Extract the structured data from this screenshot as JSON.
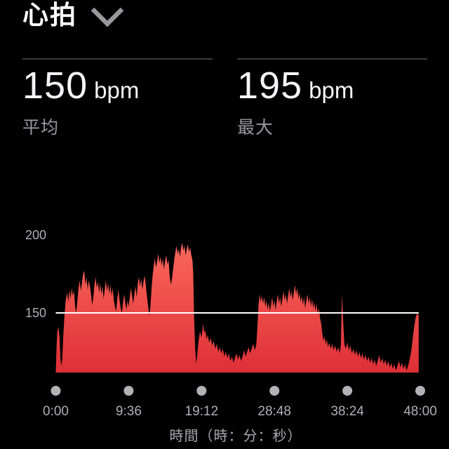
{
  "header": {
    "title": "心拍"
  },
  "stats": [
    {
      "value": "150",
      "unit": "bpm",
      "label": "平均"
    },
    {
      "value": "195",
      "unit": "bpm",
      "label": "最大"
    }
  ],
  "chart_data": {
    "type": "area",
    "series_name": "心拍数",
    "unit": "bpm",
    "xlabel": "時間（時：分：秒）",
    "x_range_minutes": [
      0,
      48
    ],
    "y_range_bpm": [
      111.5,
      211
    ],
    "reference_line_bpm": 150,
    "grid": "off",
    "y_ticks": [
      {
        "value": 200,
        "label": "200"
      },
      {
        "value": 150,
        "label": "150"
      }
    ],
    "x_ticks": [
      {
        "minutes": 0,
        "label": "0:00"
      },
      {
        "minutes": 9.6,
        "label": "9:36"
      },
      {
        "minutes": 19.2,
        "label": "19:12"
      },
      {
        "minutes": 28.8,
        "label": "28:48"
      },
      {
        "minutes": 38.4,
        "label": "38:24"
      },
      {
        "minutes": 48,
        "label": "48:00"
      }
    ],
    "colors": {
      "area_top": "#fc6a5d",
      "area_bottom": "#de2f37",
      "reference_line": "#ffffff",
      "tick_dot": "#b2b2b7",
      "tick_label": "#b0b0b5",
      "caption_gray": "#98989d",
      "divider": "#3a3a3c",
      "background": "#000000"
    },
    "series": [
      {
        "name": "心拍数",
        "unit": "bpm",
        "points": [
          [
            0,
            112
          ],
          [
            0.1,
            128
          ],
          [
            0.2,
            138
          ],
          [
            0.35,
            141
          ],
          [
            0.5,
            134
          ],
          [
            0.6,
            122
          ],
          [
            0.7,
            116
          ],
          [
            0.85,
            120
          ],
          [
            1,
            136
          ],
          [
            1.15,
            148
          ],
          [
            1.3,
            158
          ],
          [
            1.5,
            163
          ],
          [
            1.65,
            157
          ],
          [
            1.8,
            165
          ],
          [
            1.95,
            159
          ],
          [
            2.1,
            166
          ],
          [
            2.25,
            161
          ],
          [
            2.4,
            164
          ],
          [
            2.55,
            154
          ],
          [
            2.7,
            150
          ],
          [
            2.85,
            158
          ],
          [
            3,
            166
          ],
          [
            3.15,
            171
          ],
          [
            3.3,
            164
          ],
          [
            3.45,
            169
          ],
          [
            3.6,
            175
          ],
          [
            3.75,
            177
          ],
          [
            3.9,
            168
          ],
          [
            4.05,
            173
          ],
          [
            4.2,
            165
          ],
          [
            4.35,
            171
          ],
          [
            4.5,
            167
          ],
          [
            4.65,
            162
          ],
          [
            4.8,
            155
          ],
          [
            4.95,
            160
          ],
          [
            5.1,
            168
          ],
          [
            5.25,
            173
          ],
          [
            5.4,
            166
          ],
          [
            5.55,
            170
          ],
          [
            5.7,
            163
          ],
          [
            5.85,
            169
          ],
          [
            6,
            162
          ],
          [
            6.15,
            167
          ],
          [
            6.3,
            159
          ],
          [
            6.45,
            165
          ],
          [
            6.6,
            171
          ],
          [
            6.75,
            164
          ],
          [
            6.9,
            169
          ],
          [
            7.05,
            162
          ],
          [
            7.2,
            168
          ],
          [
            7.35,
            161
          ],
          [
            7.5,
            166
          ],
          [
            7.65,
            158
          ],
          [
            7.8,
            154
          ],
          [
            7.95,
            151
          ],
          [
            8.1,
            159
          ],
          [
            8.25,
            165
          ],
          [
            8.4,
            158
          ],
          [
            8.55,
            153
          ],
          [
            8.7,
            150
          ],
          [
            8.85,
            156
          ],
          [
            9,
            162
          ],
          [
            9.15,
            157
          ],
          [
            9.3,
            152
          ],
          [
            9.45,
            158
          ],
          [
            9.6,
            154
          ],
          [
            9.75,
            160
          ],
          [
            9.9,
            166
          ],
          [
            10.05,
            161
          ],
          [
            10.2,
            156
          ],
          [
            10.35,
            162
          ],
          [
            10.5,
            167
          ],
          [
            10.65,
            160
          ],
          [
            10.8,
            169
          ],
          [
            10.95,
            173
          ],
          [
            11.1,
            167
          ],
          [
            11.25,
            172
          ],
          [
            11.4,
            165
          ],
          [
            11.55,
            170
          ],
          [
            11.7,
            174
          ],
          [
            11.85,
            168
          ],
          [
            12,
            161
          ],
          [
            12.15,
            155
          ],
          [
            12.3,
            148
          ],
          [
            12.45,
            153
          ],
          [
            12.6,
            165
          ],
          [
            12.75,
            174
          ],
          [
            12.9,
            180
          ],
          [
            13.05,
            185
          ],
          [
            13.2,
            179
          ],
          [
            13.35,
            183
          ],
          [
            13.5,
            188
          ],
          [
            13.65,
            182
          ],
          [
            13.8,
            186
          ],
          [
            13.95,
            180
          ],
          [
            14.1,
            185
          ],
          [
            14.25,
            178
          ],
          [
            14.4,
            183
          ],
          [
            14.55,
            187
          ],
          [
            14.7,
            181
          ],
          [
            14.85,
            184
          ],
          [
            15,
            174
          ],
          [
            15.15,
            168
          ],
          [
            15.3,
            172
          ],
          [
            15.45,
            178
          ],
          [
            15.6,
            184
          ],
          [
            15.75,
            189
          ],
          [
            15.9,
            193
          ],
          [
            16.05,
            188
          ],
          [
            16.2,
            191
          ],
          [
            16.35,
            186
          ],
          [
            16.5,
            192
          ],
          [
            16.65,
            195
          ],
          [
            16.8,
            190
          ],
          [
            16.95,
            193
          ],
          [
            17.1,
            187
          ],
          [
            17.25,
            191
          ],
          [
            17.4,
            194
          ],
          [
            17.55,
            189
          ],
          [
            17.7,
            192
          ],
          [
            17.85,
            187
          ],
          [
            18,
            184
          ],
          [
            18.1,
            176
          ],
          [
            18.2,
            150
          ],
          [
            18.35,
            128
          ],
          [
            18.5,
            117
          ],
          [
            18.65,
            124
          ],
          [
            18.8,
            132
          ],
          [
            19,
            138
          ],
          [
            19.2,
            134
          ],
          [
            19.4,
            143
          ],
          [
            19.55,
            137
          ],
          [
            19.7,
            139
          ],
          [
            19.85,
            133
          ],
          [
            20,
            136
          ],
          [
            20.2,
            131
          ],
          [
            20.4,
            134
          ],
          [
            20.6,
            129
          ],
          [
            20.8,
            132
          ],
          [
            21,
            127
          ],
          [
            21.2,
            130
          ],
          [
            21.4,
            125
          ],
          [
            21.6,
            128
          ],
          [
            21.8,
            124
          ],
          [
            22,
            127
          ],
          [
            22.2,
            122
          ],
          [
            22.4,
            125
          ],
          [
            22.6,
            121
          ],
          [
            22.8,
            124
          ],
          [
            23,
            119
          ],
          [
            23.2,
            122
          ],
          [
            23.4,
            118
          ],
          [
            23.6,
            121
          ],
          [
            23.8,
            124
          ],
          [
            24,
            120
          ],
          [
            24.2,
            123
          ],
          [
            24.4,
            119
          ],
          [
            24.6,
            122
          ],
          [
            24.8,
            126
          ],
          [
            25,
            122
          ],
          [
            25.2,
            125
          ],
          [
            25.4,
            128
          ],
          [
            25.6,
            124
          ],
          [
            25.8,
            127
          ],
          [
            26,
            130
          ],
          [
            26.2,
            126
          ],
          [
            26.4,
            129
          ],
          [
            26.55,
            140
          ],
          [
            26.7,
            155
          ],
          [
            26.85,
            162
          ],
          [
            27,
            157
          ],
          [
            27.15,
            161
          ],
          [
            27.3,
            156
          ],
          [
            27.45,
            160
          ],
          [
            27.6,
            154
          ],
          [
            27.75,
            158
          ],
          [
            27.9,
            152
          ],
          [
            28.05,
            157
          ],
          [
            28.2,
            151
          ],
          [
            28.35,
            155
          ],
          [
            28.5,
            160
          ],
          [
            28.65,
            154
          ],
          [
            28.8,
            158
          ],
          [
            28.95,
            152
          ],
          [
            29.1,
            157
          ],
          [
            29.25,
            162
          ],
          [
            29.4,
            156
          ],
          [
            29.55,
            160
          ],
          [
            29.7,
            154
          ],
          [
            29.85,
            159
          ],
          [
            30,
            164
          ],
          [
            30.15,
            158
          ],
          [
            30.3,
            162
          ],
          [
            30.45,
            156
          ],
          [
            30.6,
            161
          ],
          [
            30.75,
            166
          ],
          [
            30.9,
            160
          ],
          [
            31.05,
            164
          ],
          [
            31.2,
            158
          ],
          [
            31.35,
            163
          ],
          [
            31.5,
            168
          ],
          [
            31.65,
            162
          ],
          [
            31.8,
            166
          ],
          [
            31.95,
            159
          ],
          [
            32.1,
            163
          ],
          [
            32.25,
            157
          ],
          [
            32.4,
            161
          ],
          [
            32.55,
            155
          ],
          [
            32.7,
            160
          ],
          [
            32.85,
            153
          ],
          [
            33,
            158
          ],
          [
            33.15,
            162
          ],
          [
            33.3,
            156
          ],
          [
            33.45,
            160
          ],
          [
            33.6,
            154
          ],
          [
            33.75,
            159
          ],
          [
            33.9,
            153
          ],
          [
            34.05,
            157
          ],
          [
            34.2,
            151
          ],
          [
            34.35,
            156
          ],
          [
            34.5,
            149
          ],
          [
            34.65,
            153
          ],
          [
            34.8,
            147
          ],
          [
            34.95,
            143
          ],
          [
            35.1,
            137
          ],
          [
            35.25,
            132
          ],
          [
            35.4,
            135
          ],
          [
            35.55,
            130
          ],
          [
            35.7,
            133
          ],
          [
            35.85,
            128
          ],
          [
            36,
            131
          ],
          [
            36.2,
            127
          ],
          [
            36.4,
            130
          ],
          [
            36.6,
            126
          ],
          [
            36.8,
            129
          ],
          [
            37,
            125
          ],
          [
            37.2,
            128
          ],
          [
            37.4,
            124
          ],
          [
            37.55,
            130
          ],
          [
            37.7,
            162
          ],
          [
            37.85,
            145
          ],
          [
            38,
            130
          ],
          [
            38.2,
            127
          ],
          [
            38.4,
            131
          ],
          [
            38.6,
            126
          ],
          [
            38.8,
            129
          ],
          [
            39,
            124
          ],
          [
            39.2,
            127
          ],
          [
            39.4,
            123
          ],
          [
            39.6,
            126
          ],
          [
            39.8,
            122
          ],
          [
            40,
            125
          ],
          [
            40.2,
            121
          ],
          [
            40.4,
            124
          ],
          [
            40.6,
            120
          ],
          [
            40.8,
            123
          ],
          [
            41,
            119
          ],
          [
            41.2,
            122
          ],
          [
            41.4,
            118
          ],
          [
            41.6,
            121
          ],
          [
            41.8,
            117
          ],
          [
            42,
            120
          ],
          [
            42.2,
            116
          ],
          [
            42.4,
            119
          ],
          [
            42.6,
            123
          ],
          [
            42.8,
            118
          ],
          [
            43,
            121
          ],
          [
            43.2,
            117
          ],
          [
            43.4,
            120
          ],
          [
            43.6,
            116
          ],
          [
            43.8,
            119
          ],
          [
            44,
            115
          ],
          [
            44.2,
            118
          ],
          [
            44.4,
            114
          ],
          [
            44.6,
            117
          ],
          [
            44.8,
            113
          ],
          [
            45,
            116
          ],
          [
            45.2,
            119
          ],
          [
            45.4,
            115
          ],
          [
            45.6,
            118
          ],
          [
            45.8,
            114
          ],
          [
            46,
            117
          ],
          [
            46.2,
            113
          ],
          [
            46.4,
            116
          ],
          [
            46.6,
            120
          ],
          [
            46.8,
            125
          ],
          [
            47,
            133
          ],
          [
            47.2,
            141
          ],
          [
            47.4,
            147
          ],
          [
            47.6,
            150
          ],
          [
            47.8,
            148
          ]
        ]
      }
    ]
  }
}
